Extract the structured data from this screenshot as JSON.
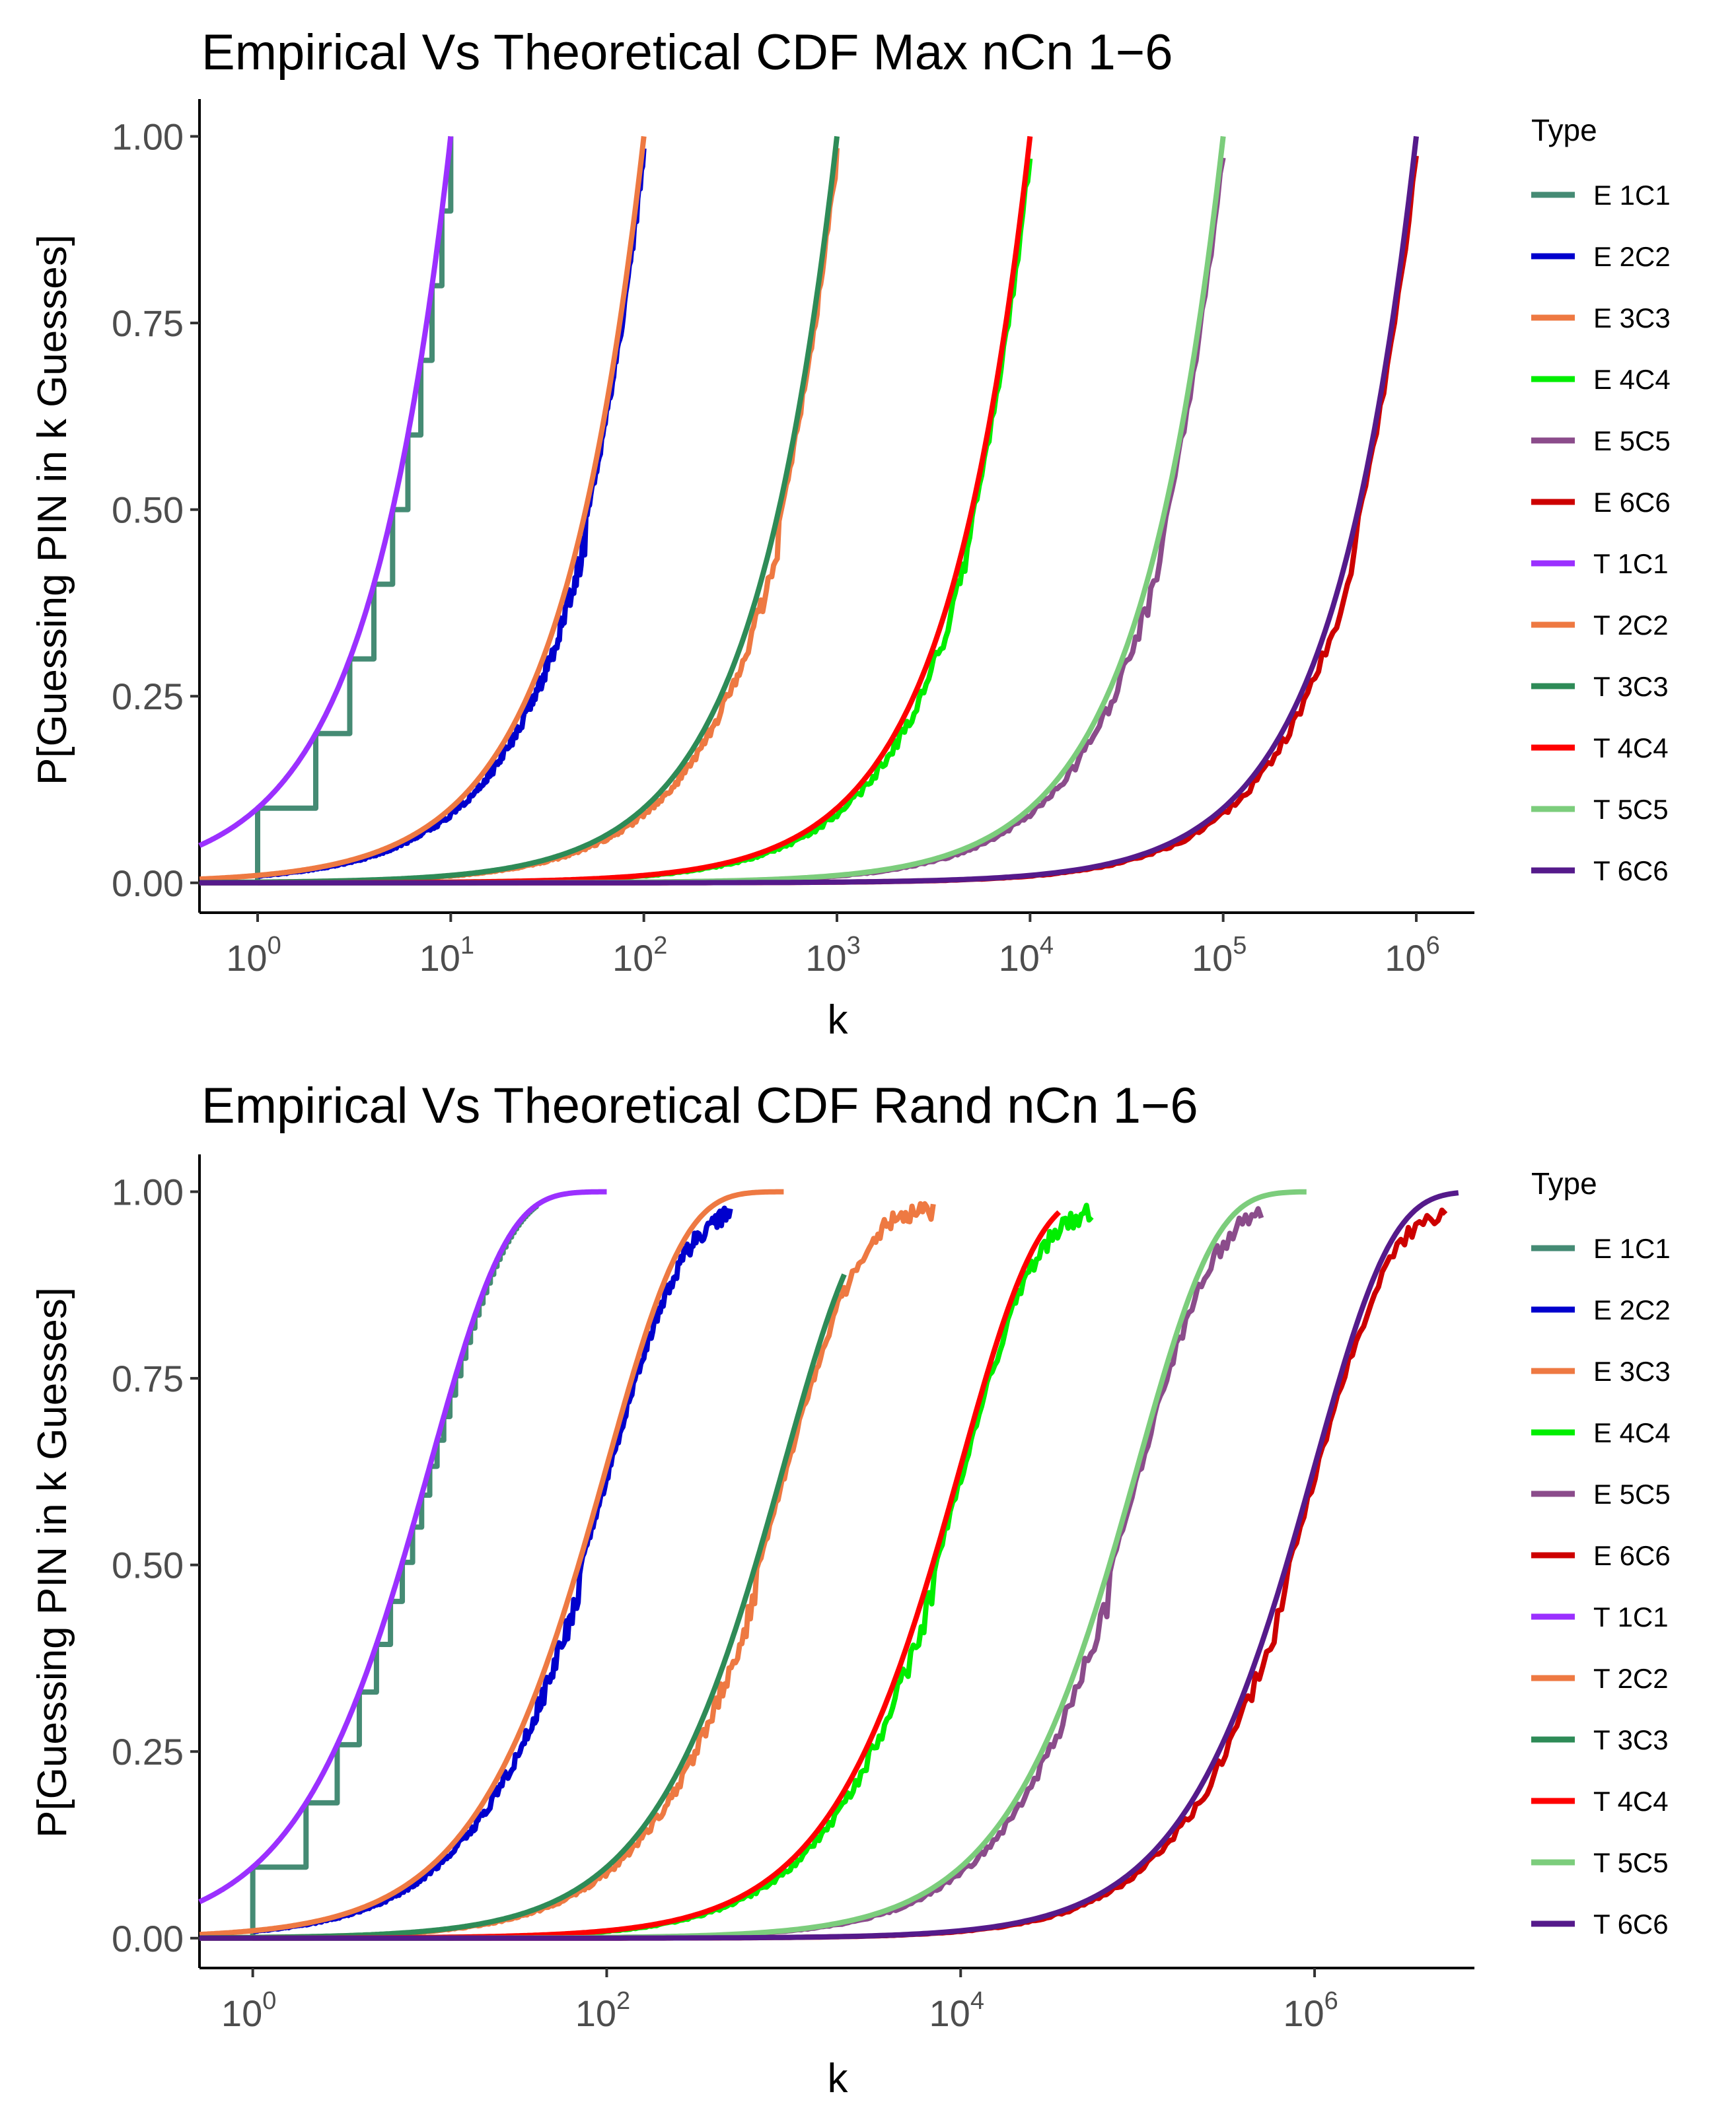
{
  "chart_data": [
    {
      "type": "line",
      "title": "Empirical Vs Theoretical CDF Max nCn 1−6",
      "xlabel": "k",
      "ylabel": "P[Guessing PIN in k Guesses]",
      "x_scale": "log10",
      "xlim": [
        0.5,
        2000000
      ],
      "ylim": [
        -0.04,
        1.05
      ],
      "x_ticks": [
        {
          "base": "10",
          "exp": "0",
          "value": 1
        },
        {
          "base": "10",
          "exp": "1",
          "value": 10
        },
        {
          "base": "10",
          "exp": "2",
          "value": 100
        },
        {
          "base": "10",
          "exp": "3",
          "value": 1000
        },
        {
          "base": "10",
          "exp": "4",
          "value": 10000
        },
        {
          "base": "10",
          "exp": "5",
          "value": 100000
        },
        {
          "base": "10",
          "exp": "6",
          "value": 1000000
        }
      ],
      "y_ticks": [
        "0.00",
        "0.25",
        "0.50",
        "0.75",
        "1.00"
      ],
      "y_tick_values": [
        0,
        0.25,
        0.5,
        0.75,
        1
      ],
      "legend": {
        "title": "Type",
        "position": "right"
      },
      "series": [
        {
          "name": "E 1C1",
          "color": "#458B74",
          "model": "max",
          "n": 10,
          "empirical": true,
          "steps": true
        },
        {
          "name": "E 2C2",
          "color": "#0000CD",
          "model": "max",
          "n": 100,
          "empirical": true
        },
        {
          "name": "E 3C3",
          "color": "#EE7942",
          "model": "max",
          "n": 1000,
          "empirical": true
        },
        {
          "name": "E 4C4",
          "color": "#00EE00",
          "model": "max",
          "n": 10000,
          "empirical": true
        },
        {
          "name": "E 5C5",
          "color": "#8B4C8B",
          "model": "max",
          "n": 100000,
          "empirical": true
        },
        {
          "name": "E 6C6",
          "color": "#CD0000",
          "model": "max",
          "n": 1000000,
          "empirical": true
        },
        {
          "name": "T 1C1",
          "color": "#9B30FF",
          "model": "max",
          "n": 10
        },
        {
          "name": "T 2C2",
          "color": "#EE7942",
          "model": "max",
          "n": 100
        },
        {
          "name": "T 3C3",
          "color": "#2E8B57",
          "model": "max",
          "n": 1000
        },
        {
          "name": "T 4C4",
          "color": "#FF0000",
          "model": "max",
          "n": 10000
        },
        {
          "name": "T 5C5",
          "color": "#7CCD7C",
          "model": "max",
          "n": 100000
        },
        {
          "name": "T 6C6",
          "color": "#551A8B",
          "model": "max",
          "n": 1000000
        }
      ]
    },
    {
      "type": "line",
      "title": "Empirical Vs Theoretical CDF Rand nCn 1−6",
      "xlabel": "k",
      "ylabel": "P[Guessing PIN in k Guesses]",
      "x_scale": "log10",
      "xlim": [
        0.5,
        8000000
      ],
      "ylim": [
        -0.04,
        1.05
      ],
      "x_ticks": [
        {
          "base": "10",
          "exp": "0",
          "value": 1
        },
        {
          "base": "10",
          "exp": "2",
          "value": 100
        },
        {
          "base": "10",
          "exp": "4",
          "value": 10000
        },
        {
          "base": "10",
          "exp": "6",
          "value": 1000000
        }
      ],
      "y_ticks": [
        "0.00",
        "0.25",
        "0.50",
        "0.75",
        "1.00"
      ],
      "y_tick_values": [
        0,
        0.25,
        0.5,
        0.75,
        1
      ],
      "legend": {
        "title": "Type",
        "position": "right"
      },
      "series": [
        {
          "name": "E 1C1",
          "color": "#458B74",
          "model": "rand",
          "n": 10,
          "empirical": true,
          "steps": true,
          "kmax": 40
        },
        {
          "name": "E 2C2",
          "color": "#0000CD",
          "model": "rand",
          "n": 100,
          "empirical": true,
          "kmax": 500
        },
        {
          "name": "E 3C3",
          "color": "#EE7942",
          "model": "rand",
          "n": 1000,
          "empirical": true,
          "kmax": 7000
        },
        {
          "name": "E 4C4",
          "color": "#00EE00",
          "model": "rand",
          "n": 10000,
          "empirical": true,
          "kmax": 55000
        },
        {
          "name": "E 5C5",
          "color": "#8B4C8B",
          "model": "rand",
          "n": 100000,
          "empirical": true,
          "kmax": 500000
        },
        {
          "name": "E 6C6",
          "color": "#CD0000",
          "model": "rand",
          "n": 1000000,
          "empirical": true,
          "kmax": 5500000
        },
        {
          "name": "T 1C1",
          "color": "#9B30FF",
          "model": "rand",
          "n": 10,
          "kmax": 100
        },
        {
          "name": "T 2C2",
          "color": "#EE7942",
          "model": "rand",
          "n": 100,
          "kmax": 1000
        },
        {
          "name": "T 3C3",
          "color": "#2E8B57",
          "model": "rand",
          "n": 1000,
          "kmax": 2200
        },
        {
          "name": "T 4C4",
          "color": "#FF0000",
          "model": "rand",
          "n": 10000,
          "kmax": 36000
        },
        {
          "name": "T 5C5",
          "color": "#7CCD7C",
          "model": "rand",
          "n": 100000,
          "kmax": 900000
        },
        {
          "name": "T 6C6",
          "color": "#551A8B",
          "model": "rand",
          "n": 1000000,
          "kmax": 6500000
        }
      ]
    }
  ]
}
